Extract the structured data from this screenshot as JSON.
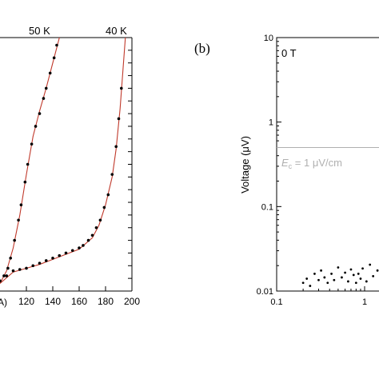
{
  "chart_data": [
    {
      "panel": "a",
      "type": "line",
      "xlim": [
        100,
        200
      ],
      "ylim": [
        0,
        1
      ],
      "x_ticks": [
        "120",
        "140",
        "160",
        "180",
        "200"
      ],
      "x_tick_values": [
        120,
        140,
        160,
        180,
        200
      ],
      "xlabel_fragment": "A)",
      "annotations": [
        "50 K",
        "40 K"
      ],
      "colors": {
        "fit": "#c0392b",
        "points": "#000000"
      },
      "series": [
        {
          "name": "50 K",
          "points": [
            [
              100,
              0.04
            ],
            [
              103,
              0.06
            ],
            [
              106,
              0.09
            ],
            [
              108,
              0.13
            ],
            [
              111,
              0.2
            ],
            [
              114,
              0.28
            ],
            [
              116,
              0.34
            ],
            [
              119,
              0.43
            ],
            [
              121,
              0.5
            ],
            [
              124,
              0.58
            ],
            [
              127,
              0.65
            ],
            [
              130,
              0.7
            ],
            [
              133,
              0.76
            ],
            [
              135,
              0.8
            ],
            [
              138,
              0.86
            ],
            [
              141,
              0.92
            ],
            [
              143,
              0.97
            ]
          ],
          "fit": [
            [
              100,
              0.03
            ],
            [
              105,
              0.08
            ],
            [
              110,
              0.17
            ],
            [
              115,
              0.3
            ],
            [
              120,
              0.46
            ],
            [
              125,
              0.61
            ],
            [
              130,
              0.71
            ],
            [
              135,
              0.8
            ],
            [
              140,
              0.9
            ],
            [
              145,
              1.0
            ]
          ]
        },
        {
          "name": "40 K",
          "points": [
            [
              100,
              0.04
            ],
            [
              105,
              0.06
            ],
            [
              110,
              0.08
            ],
            [
              115,
              0.085
            ],
            [
              120,
              0.09
            ],
            [
              125,
              0.1
            ],
            [
              130,
              0.11
            ],
            [
              135,
              0.12
            ],
            [
              140,
              0.13
            ],
            [
              145,
              0.14
            ],
            [
              150,
              0.15
            ],
            [
              155,
              0.16
            ],
            [
              160,
              0.17
            ],
            [
              163,
              0.18
            ],
            [
              167,
              0.2
            ],
            [
              170,
              0.22
            ],
            [
              173,
              0.25
            ],
            [
              176,
              0.28
            ],
            [
              179,
              0.33
            ],
            [
              182,
              0.38
            ],
            [
              185,
              0.46
            ],
            [
              188,
              0.57
            ],
            [
              190,
              0.68
            ],
            [
              192,
              0.8
            ]
          ],
          "fit": [
            [
              100,
              0.03
            ],
            [
              110,
              0.075
            ],
            [
              120,
              0.09
            ],
            [
              130,
              0.105
            ],
            [
              140,
              0.125
            ],
            [
              150,
              0.145
            ],
            [
              160,
              0.165
            ],
            [
              170,
              0.21
            ],
            [
              175,
              0.26
            ],
            [
              180,
              0.34
            ],
            [
              185,
              0.45
            ],
            [
              188,
              0.56
            ],
            [
              191,
              0.72
            ],
            [
              193,
              0.86
            ],
            [
              195,
              1.0
            ]
          ]
        }
      ]
    },
    {
      "panel": "b",
      "panel_label": "(b)",
      "type": "scatter",
      "x_scale": "log",
      "y_scale": "log",
      "xlim": [
        0.1,
        2
      ],
      "ylim": [
        0.01,
        10
      ],
      "ylabel": "Voltage (μV)",
      "x_ticks": [
        "0.1",
        "1"
      ],
      "y_ticks": [
        "0.01",
        "0.1",
        "1",
        "10"
      ],
      "field_label": "0 T",
      "criterion": {
        "label": "E c = 1 μV/cm",
        "value": 0.5,
        "color": "#b0b0b0"
      },
      "points": [
        [
          0.2,
          0.0125
        ],
        [
          0.22,
          0.014
        ],
        [
          0.24,
          0.0115
        ],
        [
          0.27,
          0.016
        ],
        [
          0.3,
          0.0135
        ],
        [
          0.32,
          0.0175
        ],
        [
          0.35,
          0.0145
        ],
        [
          0.38,
          0.0125
        ],
        [
          0.42,
          0.016
        ],
        [
          0.45,
          0.0135
        ],
        [
          0.5,
          0.019
        ],
        [
          0.55,
          0.0145
        ],
        [
          0.6,
          0.0165
        ],
        [
          0.65,
          0.013
        ],
        [
          0.7,
          0.018
        ],
        [
          0.75,
          0.0155
        ],
        [
          0.8,
          0.0125
        ],
        [
          0.85,
          0.016
        ],
        [
          0.9,
          0.014
        ],
        [
          0.95,
          0.0185
        ],
        [
          1.05,
          0.013
        ],
        [
          1.15,
          0.0205
        ],
        [
          1.25,
          0.015
        ],
        [
          1.4,
          0.0175
        ],
        [
          1.6,
          0.014
        ],
        [
          1.8,
          0.0165
        ]
      ]
    }
  ],
  "text": {
    "anno_50k": "50 K",
    "anno_40k": "40 K",
    "xlabel_a": "A)",
    "panel_b": "(b)",
    "field_b": "0 T",
    "ylabel_b": "Voltage (μV)",
    "crit_E": "E",
    "crit_sub": "c",
    "crit_rest": " = 1 μV/cm"
  }
}
